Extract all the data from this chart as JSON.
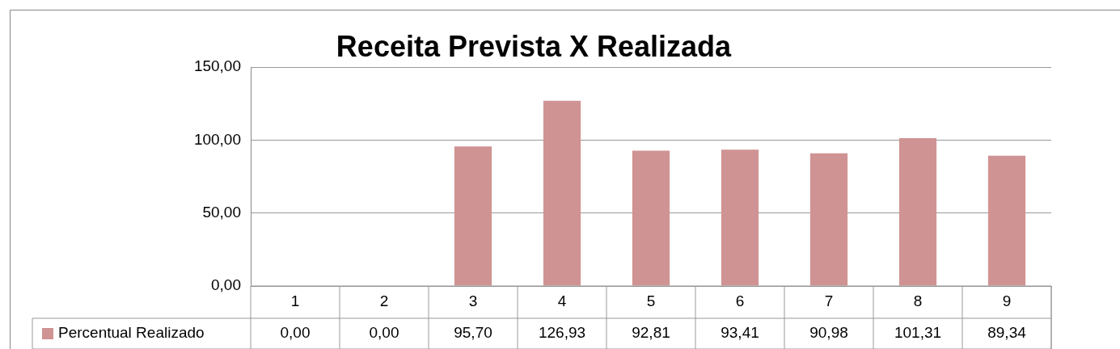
{
  "chart_data": {
    "type": "bar",
    "title": "Receita Prevista X Realizada",
    "categories": [
      "1",
      "2",
      "3",
      "4",
      "5",
      "6",
      "7",
      "8",
      "9"
    ],
    "series": [
      {
        "name": "Percentual Realizado",
        "color": "#d09393",
        "values": [
          0,
          0,
          95.7,
          126.93,
          92.81,
          93.41,
          90.98,
          101.31,
          89.34
        ],
        "value_labels": [
          "0,00",
          "0,00",
          "95,70",
          "126,93",
          "92,81",
          "93,41",
          "90,98",
          "101,31",
          "89,34"
        ]
      }
    ],
    "ylim": [
      0,
      150
    ],
    "yticks": [
      {
        "value": 0,
        "label": "0,00"
      },
      {
        "value": 50,
        "label": "50,00"
      },
      {
        "value": 100,
        "label": "100,00"
      },
      {
        "value": 150,
        "label": "150,00"
      }
    ],
    "grid": "y",
    "legend": "bottom"
  }
}
